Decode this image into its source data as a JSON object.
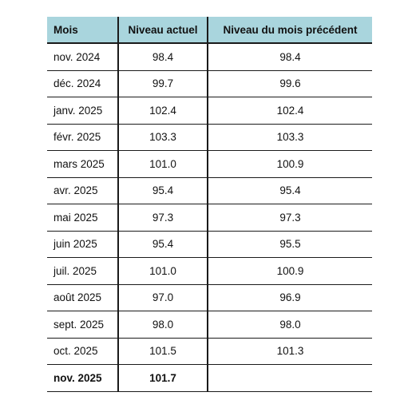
{
  "table": {
    "headers": [
      "Mois",
      "Niveau actuel",
      "Niveau du mois précédent"
    ],
    "rows": [
      {
        "month": "nov. 2024",
        "current": "98.4",
        "previous": "98.4"
      },
      {
        "month": "déc. 2024",
        "current": "99.7",
        "previous": "99.6"
      },
      {
        "month": "janv. 2025",
        "current": "102.4",
        "previous": "102.4"
      },
      {
        "month": "févr. 2025",
        "current": "103.3",
        "previous": "103.3"
      },
      {
        "month": "mars 2025",
        "current": "101.0",
        "previous": "100.9"
      },
      {
        "month": "avr. 2025",
        "current": "95.4",
        "previous": "95.4"
      },
      {
        "month": "mai 2025",
        "current": "97.3",
        "previous": "97.3"
      },
      {
        "month": "juin 2025",
        "current": "95.4",
        "previous": "95.5"
      },
      {
        "month": "juil. 2025",
        "current": "101.0",
        "previous": "100.9"
      },
      {
        "month": "août 2025",
        "current": "97.0",
        "previous": "96.9"
      },
      {
        "month": "sept. 2025",
        "current": "98.0",
        "previous": "98.0"
      },
      {
        "month": "oct. 2025",
        "current": "101.5",
        "previous": "101.3"
      },
      {
        "month": "nov. 2025",
        "current": "101.7",
        "previous": ""
      }
    ]
  },
  "colors": {
    "header_background": "#a9d5dd",
    "rule": "#1a1a1a"
  }
}
